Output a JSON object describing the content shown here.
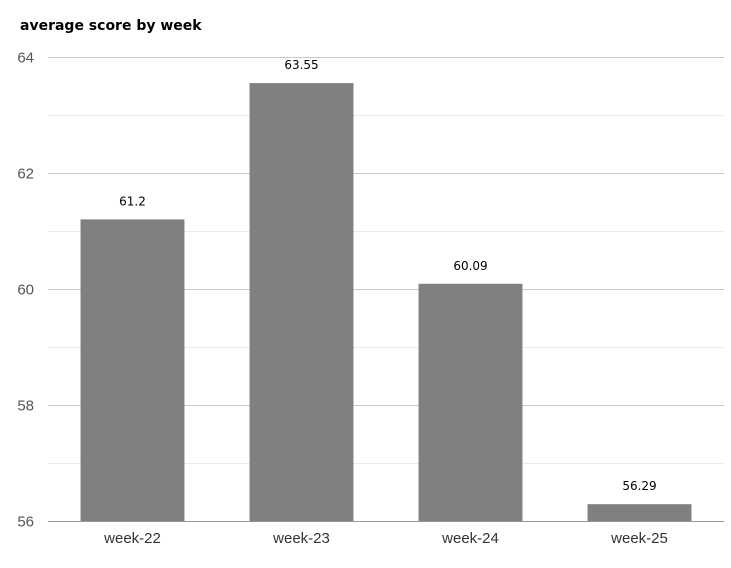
{
  "chart_data": {
    "type": "bar",
    "title": "average score by week",
    "xlabel": "",
    "ylabel": "",
    "categories": [
      "week-22",
      "week-23",
      "week-24",
      "week-25"
    ],
    "values": [
      61.2,
      63.55,
      60.09,
      56.29
    ],
    "data_labels": [
      "61.2",
      "63.55",
      "60.09",
      "56.29"
    ],
    "ylim": [
      56,
      64
    ],
    "y_ticks": [
      56,
      58,
      60,
      62,
      64
    ],
    "y_tick_labels": [
      "56",
      "58",
      "60",
      "62",
      "64"
    ],
    "grid": true,
    "legend": "none",
    "colors": {
      "bar": "#808080",
      "major_grid": "#c8c8c8",
      "minor_grid": "#ebebeb",
      "axis_line": "#999999"
    }
  }
}
